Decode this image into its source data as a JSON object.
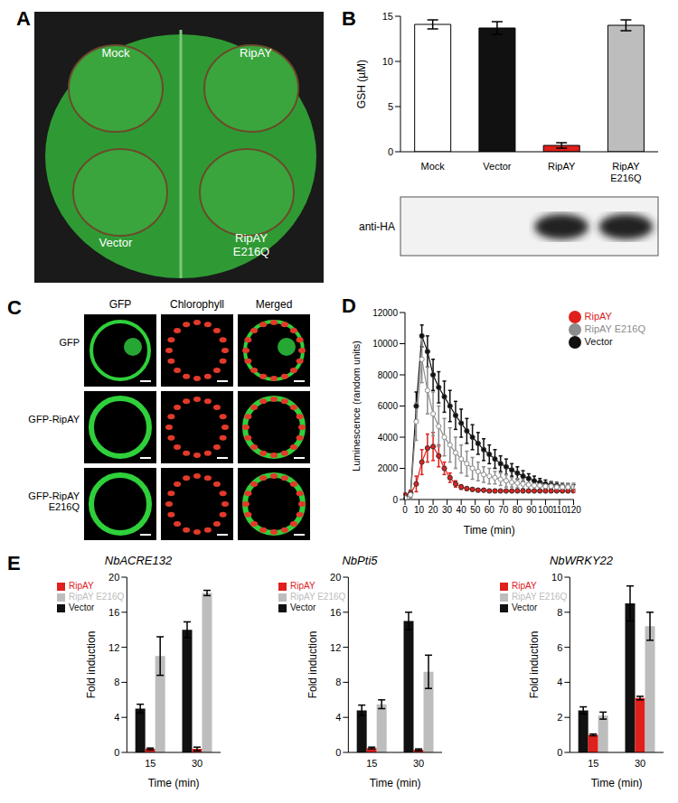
{
  "images": {
    "A": {
      "panel": "A",
      "labels": [
        "Mock",
        "RipAY",
        "Vector",
        "RipAY E216Q"
      ]
    },
    "C": {
      "panel": "C",
      "columns": [
        "GFP",
        "Chlorophyll",
        "Merged"
      ],
      "rows": [
        "GFP",
        "GFP-RipAY",
        "GFP-RipAY E216Q"
      ]
    }
  },
  "chart_data": [
    {
      "panel": "B",
      "type": "bar",
      "ylabel": "GSH (µM)",
      "categories": [
        "Mock",
        "Vector",
        "RipAY",
        "RipAY E216Q"
      ],
      "values": [
        14.1,
        13.7,
        0.7,
        14.0
      ],
      "errors": [
        0.5,
        0.7,
        0.3,
        0.6
      ],
      "colors": [
        "#ffffff",
        "#111111",
        "#e0201c",
        "#bdbdbd"
      ],
      "ylim": [
        0,
        15
      ],
      "yticks": [
        0,
        5,
        10,
        15
      ],
      "annotation": "anti-HA"
    },
    {
      "panel": "D",
      "type": "line",
      "xlabel": "Time (min)",
      "ylabel": "Luminescence (random units)",
      "x": [
        0,
        4,
        8,
        12,
        16,
        20,
        24,
        28,
        32,
        36,
        40,
        44,
        48,
        52,
        56,
        60,
        64,
        68,
        72,
        76,
        80,
        84,
        88,
        92,
        96,
        100,
        104,
        108,
        112,
        116,
        120
      ],
      "xlim": [
        0,
        120
      ],
      "xticks": [
        0,
        10,
        20,
        30,
        40,
        50,
        60,
        70,
        80,
        90,
        100,
        110,
        120
      ],
      "ylim": [
        0,
        12000
      ],
      "yticks": [
        0,
        2000,
        4000,
        6000,
        8000,
        10000,
        12000
      ],
      "legend": "top-right",
      "series": [
        {
          "name": "Vector",
          "color": "#111111",
          "marker": "circle",
          "values": [
            200,
            400,
            6000,
            10500,
            9500,
            8000,
            7200,
            6600,
            6000,
            5400,
            4900,
            4400,
            4000,
            3600,
            3200,
            2900,
            2600,
            2300,
            2100,
            1900,
            1700,
            1500,
            1350,
            1200,
            1100,
            1000,
            950,
            900,
            850,
            800,
            750
          ],
          "errors": [
            100,
            200,
            900,
            700,
            1000,
            1000,
            1000,
            1000,
            1000,
            900,
            900,
            800,
            800,
            700,
            700,
            600,
            600,
            500,
            500,
            400,
            400,
            350,
            300,
            300,
            250,
            250,
            200,
            200,
            200,
            200,
            200
          ]
        },
        {
          "name": "RipAY",
          "color": "#e0201c",
          "marker": "circle",
          "values": [
            300,
            400,
            1000,
            2400,
            3300,
            3400,
            2800,
            2000,
            1400,
            1000,
            800,
            700,
            650,
            600,
            600,
            550,
            550,
            550,
            550,
            550,
            550,
            550,
            550,
            550,
            550,
            550,
            550,
            550,
            550,
            550,
            550
          ],
          "errors": [
            100,
            200,
            500,
            800,
            900,
            900,
            700,
            400,
            300,
            200,
            150,
            100,
            100,
            100,
            100,
            100,
            100,
            100,
            100,
            100,
            100,
            100,
            100,
            100,
            100,
            100,
            100,
            100,
            100,
            100,
            100
          ]
        },
        {
          "name": "RipAY E216Q",
          "color": "#8c8c8c",
          "marker": "open_circle",
          "values": [
            100,
            300,
            5000,
            9000,
            7000,
            5500,
            4700,
            4000,
            3500,
            3000,
            2600,
            2300,
            2000,
            1800,
            1600,
            1500,
            1400,
            1300,
            1200,
            1100,
            1050,
            1000,
            950,
            900,
            900,
            850,
            850,
            800,
            800,
            800,
            800
          ],
          "errors": [
            100,
            200,
            1200,
            1500,
            1500,
            1400,
            1300,
            1200,
            1100,
            1000,
            900,
            800,
            700,
            600,
            500,
            500,
            400,
            400,
            400,
            300,
            300,
            300,
            300,
            300,
            300,
            250,
            250,
            250,
            250,
            250,
            250
          ]
        }
      ]
    },
    {
      "panel": "E",
      "type": "bar",
      "title": "NbACRE132",
      "xlabel": "Time (min)",
      "ylabel": "Fold induction",
      "categories": [
        "15",
        "30"
      ],
      "ylim": [
        0,
        20
      ],
      "yticks": [
        0,
        4,
        8,
        12,
        16,
        20
      ],
      "legend": "top-left",
      "series": [
        {
          "name": "Vector",
          "color": "#111111",
          "values": [
            5.0,
            14.0
          ],
          "errors": [
            0.5,
            0.9
          ]
        },
        {
          "name": "RipAY",
          "color": "#e0201c",
          "values": [
            0.4,
            0.4
          ],
          "errors": [
            0.1,
            0.2
          ]
        },
        {
          "name": "RipAY E216Q",
          "color": "#bdbdbd",
          "values": [
            11.0,
            18.2
          ],
          "errors": [
            2.2,
            0.3
          ]
        }
      ]
    },
    {
      "type": "bar",
      "title": "NbPti5",
      "xlabel": "Time (min)",
      "ylabel": "Fold induction",
      "categories": [
        "15",
        "30"
      ],
      "ylim": [
        0,
        20
      ],
      "yticks": [
        0,
        4,
        8,
        12,
        16,
        20
      ],
      "legend": "top-left",
      "series": [
        {
          "name": "Vector",
          "color": "#111111",
          "values": [
            4.8,
            15.0
          ],
          "errors": [
            0.6,
            1.0
          ]
        },
        {
          "name": "RipAY",
          "color": "#e0201c",
          "values": [
            0.5,
            0.3
          ],
          "errors": [
            0.1,
            0.1
          ]
        },
        {
          "name": "RipAY E216Q",
          "color": "#bdbdbd",
          "values": [
            5.5,
            9.2
          ],
          "errors": [
            0.5,
            1.9
          ]
        }
      ]
    },
    {
      "type": "bar",
      "title": "NbWRKY22",
      "xlabel": "Time (min)",
      "ylabel": "Fold induction",
      "categories": [
        "15",
        "30"
      ],
      "ylim": [
        0,
        10
      ],
      "yticks": [
        0,
        2,
        4,
        6,
        8,
        10
      ],
      "legend": "top-left",
      "series": [
        {
          "name": "Vector",
          "color": "#111111",
          "values": [
            2.4,
            8.5
          ],
          "errors": [
            0.2,
            1.0
          ]
        },
        {
          "name": "RipAY",
          "color": "#e0201c",
          "values": [
            1.0,
            3.1
          ],
          "errors": [
            0.05,
            0.1
          ]
        },
        {
          "name": "RipAY E216Q",
          "color": "#bdbdbd",
          "values": [
            2.1,
            7.2
          ],
          "errors": [
            0.2,
            0.8
          ]
        }
      ]
    }
  ]
}
